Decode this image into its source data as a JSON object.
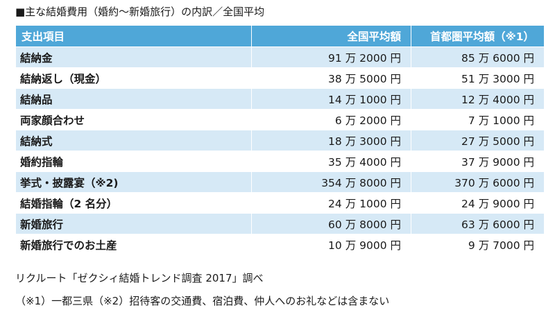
{
  "caption": "■主な結婚費用（婚約～新婚旅行）の内訳／全国平均",
  "table": {
    "headers": [
      "支出項目",
      "全国平均額",
      "首都圏平均額（※1）"
    ],
    "rows": [
      [
        "結納金",
        "91 万 2000 円",
        "85 万 6000 円"
      ],
      [
        "結納返し（現金）",
        "38 万 5000 円",
        "51 万 3000 円"
      ],
      [
        "結納品",
        "14 万 1000 円",
        "12 万 4000 円"
      ],
      [
        "両家顔合わせ",
        "6 万 2000 円",
        "7 万 1000 円"
      ],
      [
        "結納式",
        "18 万 3000 円",
        "27 万 5000 円"
      ],
      [
        "婚約指輪",
        "35 万 4000 円",
        "37 万 9000 円"
      ],
      [
        "挙式・披露宴（※2)",
        "354 万 8000 円",
        "370 万 6000 円"
      ],
      [
        "結婚指輪（2 名分）",
        "24 万 1000 円",
        "24 万 9000 円"
      ],
      [
        "新婚旅行",
        "60 万 8000 円",
        "63 万 6000 円"
      ],
      [
        "新婚旅行でのお土産",
        "10 万 9000 円",
        "9 万 7000 円"
      ]
    ]
  },
  "source": "リクルート「ゼクシィ結婚トレンド調査 2017」調べ",
  "footnote": "（※1）一都三県（※2）招待客の交通費、宿泊費、仲人へのお礼などは含まない",
  "colors": {
    "header_bg": "#4fa7d8",
    "stripe_bg": "#d6e9f6"
  }
}
